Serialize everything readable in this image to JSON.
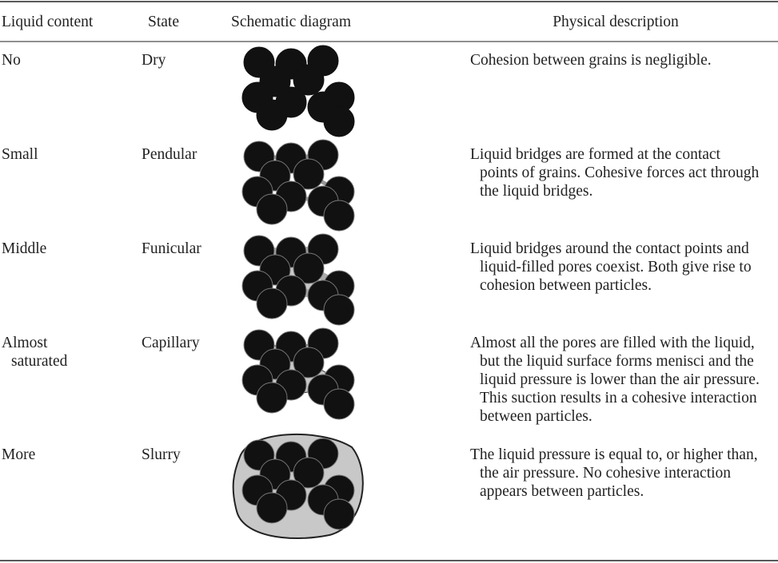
{
  "table": {
    "header": [
      "Liquid content",
      "State",
      "Schematic diagram",
      "Physical description"
    ],
    "rows": [
      {
        "content": [
          "No"
        ],
        "state": "Dry",
        "description": [
          "Cohesion between grains is negligible."
        ]
      },
      {
        "content": [
          "Small"
        ],
        "state": "Pendular",
        "description": [
          "Liquid bridges are formed at the contact",
          "points of grains. Cohesive forces act through",
          "the liquid bridges."
        ]
      },
      {
        "content": [
          "Middle"
        ],
        "state": "Funicular",
        "description": [
          "Liquid bridges around the contact points and",
          "liquid-filled pores coexist. Both give rise to",
          "cohesion between particles."
        ]
      },
      {
        "content": [
          "Almost",
          "saturated"
        ],
        "state": "Capillary",
        "description": [
          "Almost all the pores are filled with the liquid,",
          "but the liquid surface forms menisci and the",
          "liquid pressure is lower than the air pressure.",
          "This suction results in a cohesive interaction",
          "between particles."
        ]
      },
      {
        "content": [
          "More"
        ],
        "state": "Slurry",
        "description": [
          "The liquid pressure is equal to, or higher than,",
          "the air pressure. No cohesive interaction",
          "appears between particles."
        ]
      }
    ]
  }
}
